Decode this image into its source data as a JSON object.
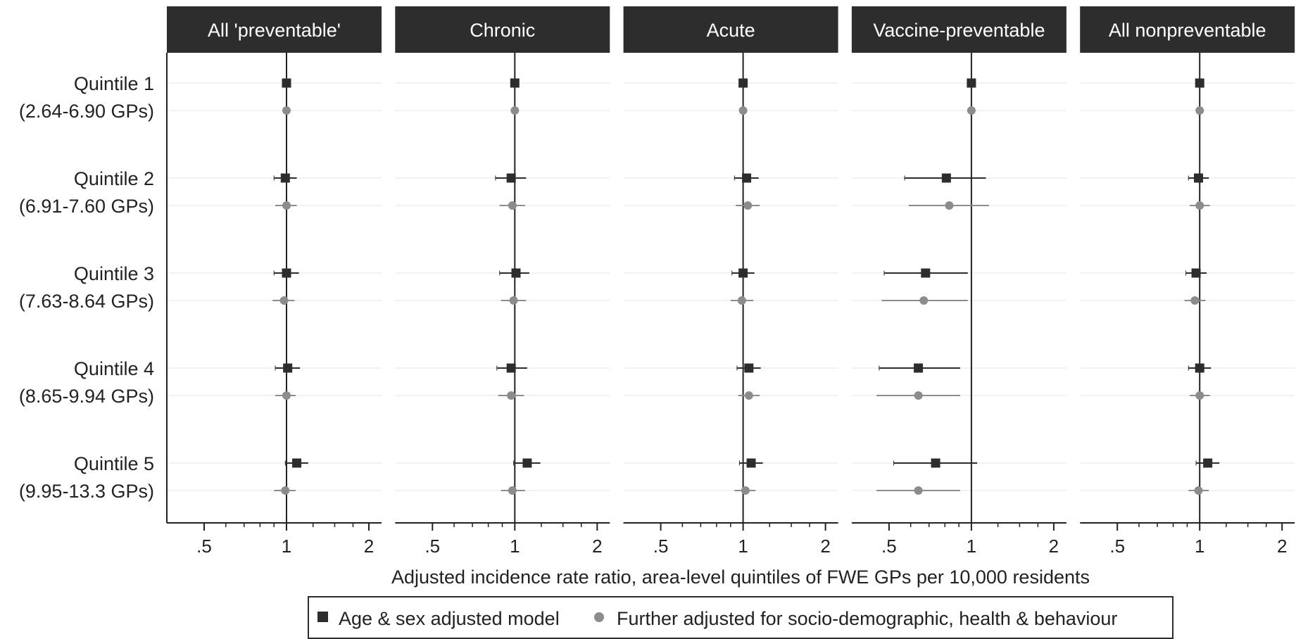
{
  "chart_data": {
    "type": "forest",
    "xlabel": "Adjusted incidence rate ratio, area-level quintiles of FWE GPs per 10,000 residents",
    "xscale": "log",
    "xlim": [
      0.36,
      2.25
    ],
    "xticks": [
      {
        "value": 0.5,
        "label": ".5"
      },
      {
        "value": 1,
        "label": "1"
      },
      {
        "value": 2,
        "label": "2"
      }
    ],
    "minor_ticks": [
      0.6,
      0.7,
      0.8,
      0.9,
      1.25,
      1.5,
      1.75
    ],
    "reference_line": 1,
    "grid": "horizontal",
    "legend_position": "bottom-center",
    "categories": [
      {
        "line1": "Quintile 1",
        "line2": "(2.64-6.90 GPs)"
      },
      {
        "line1": "Quintile 2",
        "line2": "(6.91-7.60 GPs)"
      },
      {
        "line1": "Quintile 3",
        "line2": "(7.63-8.64 GPs)"
      },
      {
        "line1": "Quintile 4",
        "line2": "(8.65-9.94 GPs)"
      },
      {
        "line1": "Quintile 5",
        "line2": "(9.95-13.3 GPs)"
      }
    ],
    "series": [
      {
        "name": "Age & sex adjusted model",
        "marker": "square",
        "color": "#2d2d2d"
      },
      {
        "name": "Further adjusted for socio-demographic, health & behaviour",
        "marker": "circle",
        "color": "#8c8c8c"
      }
    ],
    "panels": [
      {
        "title": "All 'preventable'",
        "age_sex": [
          {
            "est": 1.0,
            "lo": 1.0,
            "hi": 1.0
          },
          {
            "est": 0.99,
            "lo": 0.9,
            "hi": 1.09
          },
          {
            "est": 1.0,
            "lo": 0.9,
            "hi": 1.11
          },
          {
            "est": 1.01,
            "lo": 0.91,
            "hi": 1.12
          },
          {
            "est": 1.09,
            "lo": 0.99,
            "hi": 1.2
          }
        ],
        "further": [
          {
            "est": 1.0,
            "lo": 1.0,
            "hi": 1.0
          },
          {
            "est": 1.0,
            "lo": 0.91,
            "hi": 1.09
          },
          {
            "est": 0.98,
            "lo": 0.89,
            "hi": 1.07
          },
          {
            "est": 1.0,
            "lo": 0.91,
            "hi": 1.08
          },
          {
            "est": 0.99,
            "lo": 0.9,
            "hi": 1.08
          }
        ]
      },
      {
        "title": "Chronic",
        "age_sex": [
          {
            "est": 1.0,
            "lo": 1.0,
            "hi": 1.0
          },
          {
            "est": 0.97,
            "lo": 0.85,
            "hi": 1.1
          },
          {
            "est": 1.01,
            "lo": 0.88,
            "hi": 1.13
          },
          {
            "est": 0.97,
            "lo": 0.86,
            "hi": 1.11
          },
          {
            "est": 1.11,
            "lo": 0.99,
            "hi": 1.24
          }
        ],
        "further": [
          {
            "est": 1.0,
            "lo": 1.0,
            "hi": 1.0
          },
          {
            "est": 0.98,
            "lo": 0.88,
            "hi": 1.09
          },
          {
            "est": 0.99,
            "lo": 0.89,
            "hi": 1.1
          },
          {
            "est": 0.97,
            "lo": 0.87,
            "hi": 1.08
          },
          {
            "est": 0.98,
            "lo": 0.89,
            "hi": 1.09
          }
        ]
      },
      {
        "title": "Acute",
        "age_sex": [
          {
            "est": 1.0,
            "lo": 1.0,
            "hi": 1.0
          },
          {
            "est": 1.03,
            "lo": 0.93,
            "hi": 1.14
          },
          {
            "est": 1.0,
            "lo": 0.91,
            "hi": 1.1
          },
          {
            "est": 1.05,
            "lo": 0.95,
            "hi": 1.16
          },
          {
            "est": 1.07,
            "lo": 0.97,
            "hi": 1.18
          }
        ],
        "further": [
          {
            "est": 1.0,
            "lo": 1.0,
            "hi": 1.0
          },
          {
            "est": 1.04,
            "lo": 0.94,
            "hi": 1.15
          },
          {
            "est": 0.99,
            "lo": 0.9,
            "hi": 1.09
          },
          {
            "est": 1.05,
            "lo": 0.96,
            "hi": 1.15
          },
          {
            "est": 1.02,
            "lo": 0.93,
            "hi": 1.11
          }
        ]
      },
      {
        "title": "Vaccine-preventable",
        "age_sex": [
          {
            "est": 1.0,
            "lo": 1.0,
            "hi": 1.0
          },
          {
            "est": 0.81,
            "lo": 0.57,
            "hi": 1.13
          },
          {
            "est": 0.68,
            "lo": 0.48,
            "hi": 0.97
          },
          {
            "est": 0.64,
            "lo": 0.46,
            "hi": 0.91
          },
          {
            "est": 0.74,
            "lo": 0.52,
            "hi": 1.05
          }
        ],
        "further": [
          {
            "est": 1.0,
            "lo": 1.0,
            "hi": 1.0
          },
          {
            "est": 0.83,
            "lo": 0.59,
            "hi": 1.16
          },
          {
            "est": 0.67,
            "lo": 0.47,
            "hi": 0.97
          },
          {
            "est": 0.64,
            "lo": 0.45,
            "hi": 0.91
          },
          {
            "est": 0.64,
            "lo": 0.45,
            "hi": 0.91
          }
        ]
      },
      {
        "title": "All nonpreventable",
        "age_sex": [
          {
            "est": 1.0,
            "lo": 1.0,
            "hi": 1.0
          },
          {
            "est": 0.99,
            "lo": 0.91,
            "hi": 1.08
          },
          {
            "est": 0.97,
            "lo": 0.89,
            "hi": 1.06
          },
          {
            "est": 1.0,
            "lo": 0.91,
            "hi": 1.1
          },
          {
            "est": 1.07,
            "lo": 0.97,
            "hi": 1.18
          }
        ],
        "further": [
          {
            "est": 1.0,
            "lo": 1.0,
            "hi": 1.0
          },
          {
            "est": 1.0,
            "lo": 0.92,
            "hi": 1.09
          },
          {
            "est": 0.96,
            "lo": 0.88,
            "hi": 1.05
          },
          {
            "est": 1.0,
            "lo": 0.92,
            "hi": 1.09
          },
          {
            "est": 0.99,
            "lo": 0.91,
            "hi": 1.08
          }
        ]
      }
    ]
  }
}
